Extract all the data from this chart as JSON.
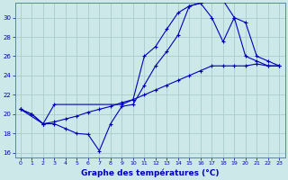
{
  "title": "Graphe des températures (°C)",
  "background_color": "#cce8e8",
  "grid_color": "#aacccc",
  "line_color": "#0000bb",
  "spine_color": "#5588aa",
  "xlim": [
    -0.5,
    23.5
  ],
  "ylim": [
    15.5,
    31.5
  ],
  "yticks": [
    16,
    18,
    20,
    22,
    24,
    26,
    28,
    30
  ],
  "xticks": [
    0,
    1,
    2,
    3,
    4,
    5,
    6,
    7,
    8,
    9,
    10,
    11,
    12,
    13,
    14,
    15,
    16,
    17,
    18,
    19,
    20,
    21,
    22,
    23
  ],
  "line1_x": [
    0,
    1,
    2,
    3,
    4,
    5,
    6,
    7,
    8,
    9,
    10,
    11,
    12,
    13,
    14,
    15,
    16,
    17,
    18,
    19,
    20,
    21,
    22,
    23
  ],
  "line1_y": [
    20.5,
    20.0,
    19.0,
    19.0,
    18.5,
    18.0,
    17.9,
    16.2,
    19.0,
    20.8,
    21.0,
    23.0,
    25.0,
    26.5,
    28.2,
    31.2,
    31.5,
    31.8,
    31.8,
    30.0,
    26.0,
    25.5,
    25.0,
    25.0
  ],
  "line2_x": [
    0,
    1,
    2,
    3,
    4,
    5,
    6,
    7,
    8,
    9,
    10,
    11,
    12,
    13,
    14,
    15,
    16,
    17,
    18,
    19,
    20,
    21,
    22,
    23
  ],
  "line2_y": [
    20.5,
    20.0,
    19.0,
    19.2,
    19.5,
    19.8,
    20.2,
    20.5,
    20.8,
    21.2,
    21.5,
    22.0,
    22.5,
    23.0,
    23.5,
    24.0,
    24.5,
    25.0,
    25.0,
    25.0,
    25.0,
    25.2,
    25.0,
    25.0
  ],
  "line3_x": [
    0,
    2,
    3,
    9,
    10,
    11,
    12,
    13,
    14,
    15,
    16,
    17,
    18,
    19,
    20,
    21,
    22,
    23
  ],
  "line3_y": [
    20.5,
    19.0,
    21.0,
    21.0,
    21.5,
    26.0,
    27.0,
    28.8,
    30.5,
    31.2,
    31.5,
    30.0,
    27.5,
    30.0,
    29.5,
    26.0,
    25.5,
    25.0
  ]
}
